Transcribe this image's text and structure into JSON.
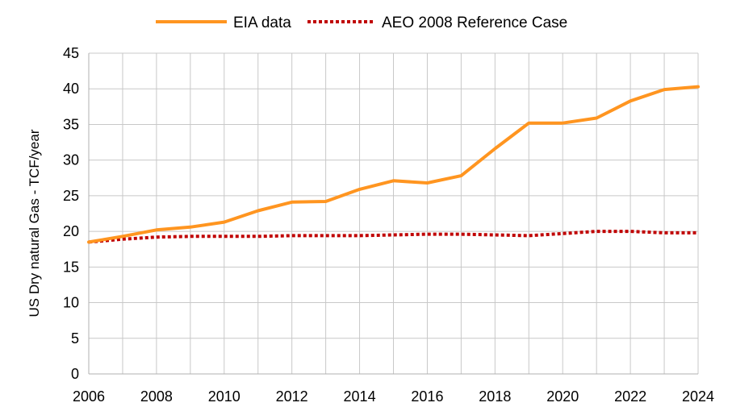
{
  "chart_data": {
    "type": "line",
    "title": "",
    "xlabel": "",
    "ylabel": "US Dry natural Gas - TCF/year",
    "xlim": [
      2006,
      2024
    ],
    "ylim": [
      0,
      45
    ],
    "x_ticks": [
      2006,
      2008,
      2010,
      2012,
      2014,
      2016,
      2018,
      2020,
      2022,
      2024
    ],
    "y_ticks": [
      0,
      5,
      10,
      15,
      20,
      25,
      30,
      35,
      40,
      45
    ],
    "grid": true,
    "legend_position": "top",
    "x": [
      2006,
      2007,
      2008,
      2009,
      2010,
      2011,
      2012,
      2013,
      2014,
      2015,
      2016,
      2017,
      2018,
      2019,
      2020,
      2021,
      2022,
      2023,
      2024
    ],
    "series": [
      {
        "name": "EIA data",
        "color": "#ff9520",
        "style": "solid",
        "values": [
          18.5,
          19.3,
          20.2,
          20.6,
          21.3,
          22.9,
          24.1,
          24.2,
          25.9,
          27.1,
          26.8,
          27.8,
          31.6,
          35.2,
          35.2,
          35.9,
          38.3,
          39.9,
          40.3
        ]
      },
      {
        "name": "AEO 2008 Reference Case",
        "color": "#c00000",
        "style": "dotted",
        "values": [
          18.5,
          18.9,
          19.2,
          19.3,
          19.3,
          19.3,
          19.4,
          19.4,
          19.4,
          19.5,
          19.6,
          19.6,
          19.5,
          19.4,
          19.7,
          20.0,
          20.0,
          19.8,
          19.8
        ]
      }
    ]
  }
}
